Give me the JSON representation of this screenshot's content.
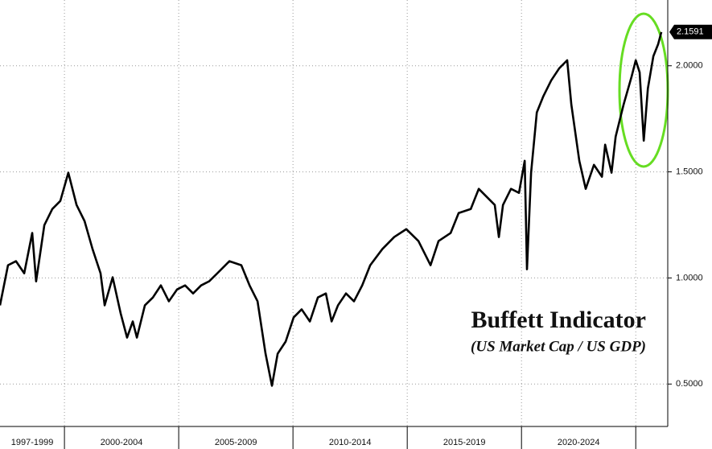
{
  "chart_data": {
    "type": "line",
    "title": "Buffett Indicator",
    "subtitle": "(US Market Cap / US GDP)",
    "x": [
      1997.18,
      1997.53,
      1997.88,
      1998.24,
      1998.59,
      1998.76,
      1999.12,
      1999.47,
      1999.82,
      2000.17,
      2000.53,
      2000.88,
      2001.23,
      2001.58,
      2001.76,
      2002.11,
      2002.46,
      2002.74,
      2002.99,
      2003.17,
      2003.52,
      2003.87,
      2004.22,
      2004.57,
      2004.93,
      2005.28,
      2005.63,
      2005.98,
      2006.33,
      2006.69,
      2007.22,
      2007.74,
      2008.1,
      2008.45,
      2008.8,
      2009.08,
      2009.33,
      2009.68,
      2010.03,
      2010.38,
      2010.74,
      2011.09,
      2011.44,
      2011.69,
      2011.97,
      2012.32,
      2012.67,
      2013.03,
      2013.38,
      2013.91,
      2014.43,
      2014.96,
      2015.49,
      2016.02,
      2016.37,
      2016.9,
      2017.25,
      2017.78,
      2018.13,
      2018.48,
      2018.83,
      2019.01,
      2019.19,
      2019.54,
      2019.89,
      2020.14,
      2020.24,
      2020.42,
      2020.67,
      2020.95,
      2021.3,
      2021.65,
      2022.0,
      2022.18,
      2022.53,
      2022.81,
      2023.17,
      2023.52,
      2023.66,
      2023.94,
      2024.12,
      2024.47,
      2024.82,
      2025.0,
      2025.17,
      2025.35,
      2025.53,
      2025.77,
      2025.98,
      2026.12
    ],
    "series": [
      {
        "name": "Buffett Indicator",
        "color": "#000000",
        "values": [
          0.871,
          1.06,
          1.079,
          1.022,
          1.212,
          0.984,
          1.249,
          1.325,
          1.363,
          1.496,
          1.344,
          1.268,
          1.136,
          1.022,
          0.871,
          1.003,
          0.833,
          0.719,
          0.795,
          0.719,
          0.871,
          0.908,
          0.965,
          0.89,
          0.946,
          0.965,
          0.927,
          0.965,
          0.984,
          1.022,
          1.079,
          1.06,
          0.965,
          0.89,
          0.643,
          0.492,
          0.643,
          0.7,
          0.814,
          0.852,
          0.795,
          0.908,
          0.927,
          0.795,
          0.871,
          0.927,
          0.89,
          0.965,
          1.06,
          1.136,
          1.193,
          1.23,
          1.174,
          1.06,
          1.174,
          1.212,
          1.306,
          1.325,
          1.42,
          1.382,
          1.344,
          1.193,
          1.344,
          1.42,
          1.401,
          1.552,
          1.041,
          1.496,
          1.78,
          1.855,
          1.931,
          1.988,
          2.026,
          1.818,
          1.552,
          1.42,
          1.533,
          1.477,
          1.628,
          1.496,
          1.666,
          1.818,
          1.95,
          2.026,
          1.969,
          1.647,
          1.893,
          2.045,
          2.102,
          2.1591
        ]
      }
    ],
    "last_value": {
      "value": 2.1591,
      "label": "2.1591"
    },
    "xlim": [
      1997.18,
      2026.4
    ],
    "xticks": [
      2000,
      2005,
      2010,
      2015,
      2020,
      2025
    ],
    "x_periods": [
      {
        "label": "1997-1999",
        "start": 1997,
        "end": 2000
      },
      {
        "label": "2000-2004",
        "start": 2000,
        "end": 2005
      },
      {
        "label": "2005-2009",
        "start": 2005,
        "end": 2010
      },
      {
        "label": "2010-2014",
        "start": 2010,
        "end": 2015
      },
      {
        "label": "2015-2019",
        "start": 2015,
        "end": 2020
      },
      {
        "label": "2020-2024",
        "start": 2020,
        "end": 2025
      }
    ],
    "ylim": [
      0.3,
      2.31
    ],
    "yticks": [
      {
        "value": 0.5,
        "label": "0.5000"
      },
      {
        "value": 1.0,
        "label": "1.0000"
      },
      {
        "value": 1.5,
        "label": "1.5000"
      },
      {
        "value": 2.0,
        "label": "2.0000"
      }
    ],
    "grid": true
  }
}
